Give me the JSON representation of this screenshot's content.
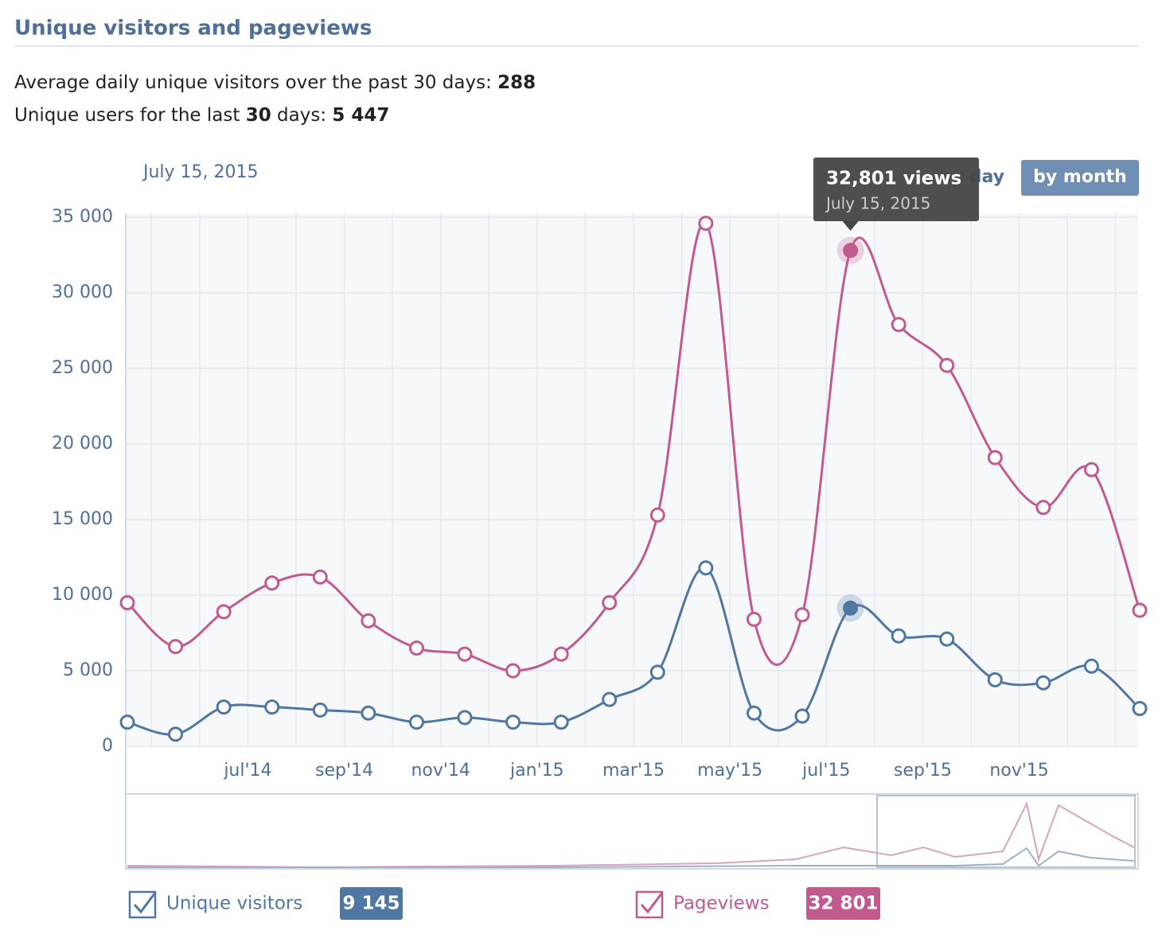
{
  "header": {
    "title": "Unique visitors and pageviews"
  },
  "stats": [
    {
      "text": "Average daily unique visitors over the past 30 days: ",
      "value": "288"
    },
    {
      "text": "Unique users for the last ",
      "bold": "30",
      "text2": " days: ",
      "value": "5 447"
    }
  ],
  "date_label": "July 15, 2015",
  "buttons": [
    "by day",
    "by month"
  ],
  "tooltip": {
    "title": "32,801 views",
    "date": "July 15, 2015"
  },
  "selected": 15,
  "chart_data": {
    "type": "line",
    "categories": [
      null,
      null,
      null,
      "jul'14",
      null,
      "sep'14",
      null,
      "nov'14",
      null,
      "jan'15",
      null,
      "mar'15",
      null,
      "may'15",
      null,
      "jul'15",
      null,
      "sep'15",
      null,
      "nov'15",
      null,
      null
    ],
    "series": [
      {
        "name": "Unique visitors",
        "color": "#4f77a4",
        "current_label": "9 145",
        "values": [
          1600,
          800,
          2600,
          2600,
          2400,
          2200,
          1600,
          1900,
          1600,
          1600,
          3100,
          4900,
          11800,
          2200,
          2000,
          9145,
          7300,
          7100,
          4400,
          4200,
          5300,
          2500
        ]
      },
      {
        "name": "Pageviews",
        "color": "#c25a8f",
        "current_label": "32 801",
        "values": [
          9500,
          6600,
          8900,
          10800,
          11200,
          8300,
          6500,
          6100,
          5000,
          6100,
          9500,
          15300,
          34600,
          8400,
          8700,
          32801,
          27900,
          25200,
          19100,
          15800,
          18300,
          9000
        ]
      }
    ],
    "ylim": [
      0,
      35000
    ],
    "yticks": [
      0,
      {
        "value": 5000,
        "label": "5 000"
      },
      {
        "value": 10000,
        "label": "10 000"
      },
      {
        "value": 15000,
        "label": "15 000"
      },
      {
        "value": 20000,
        "label": "20 000"
      },
      {
        "value": 25000,
        "label": "25 000"
      },
      {
        "value": 30000,
        "label": "30 000"
      },
      {
        "value": 35000,
        "label": "35 000"
      }
    ],
    "grid": true
  }
}
